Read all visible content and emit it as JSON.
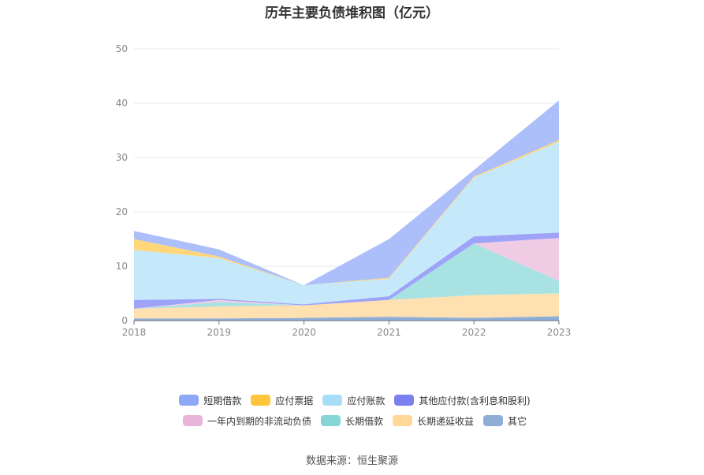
{
  "chart_data": {
    "type": "area",
    "stacked": true,
    "title": "历年主要负债堆积图（亿元）",
    "source": "数据来源：恒生聚源",
    "x": [
      "2018",
      "2019",
      "2020",
      "2021",
      "2022",
      "2023"
    ],
    "ylim": [
      0,
      50
    ],
    "yticks": [
      "0",
      "10",
      "20",
      "30",
      "40",
      "50"
    ],
    "grid": true,
    "legend_position": "bottom",
    "series": [
      {
        "name": "其它",
        "color": "#8eaed8",
        "values": [
          0.4,
          0.4,
          0.5,
          0.7,
          0.5,
          0.8
        ]
      },
      {
        "name": "长期递延收益",
        "color": "#ffe0b0",
        "values": [
          1.8,
          2.2,
          2.3,
          3.1,
          4.2,
          4.2
        ]
      },
      {
        "name": "长期借款",
        "color": "#a8e2e2",
        "values": [
          0,
          0.8,
          0,
          0,
          9.5,
          2.3
        ]
      },
      {
        "name": "一年内到期的非流动负债",
        "color": "#f0cce4",
        "values": [
          0,
          0.4,
          0,
          0,
          0,
          7.9
        ]
      },
      {
        "name": "其他应付款(含利息和股利)",
        "color": "#9ea3f8",
        "values": [
          1.6,
          0.2,
          0.2,
          0.7,
          1.3,
          1.0
        ]
      },
      {
        "name": "应付账款",
        "color": "#c5e9fb",
        "values": [
          9.2,
          7.5,
          3.5,
          3.2,
          10.8,
          16.7
        ]
      },
      {
        "name": "应付票据",
        "color": "#ffd77a",
        "values": [
          2.0,
          0.3,
          0,
          0.2,
          0.2,
          0.3
        ]
      },
      {
        "name": "短期借款",
        "color": "#adbffb",
        "values": [
          1.5,
          1.3,
          0,
          7.1,
          1.2,
          7.3
        ]
      }
    ],
    "legend": [
      [
        {
          "name": "短期借款",
          "color": "#8ea8f8"
        },
        {
          "name": "应付票据",
          "color": "#ffc53d"
        },
        {
          "name": "应付账款",
          "color": "#a8ddf8"
        },
        {
          "name": "其他应付款(含利息和股利)",
          "color": "#7b7ff0"
        }
      ],
      [
        {
          "name": "一年内到期的非流动负债",
          "color": "#e8b4d8"
        },
        {
          "name": "长期借款",
          "color": "#86d6d6"
        },
        {
          "name": "长期递延收益",
          "color": "#ffd898"
        },
        {
          "name": "其它",
          "color": "#8eaed8"
        }
      ]
    ]
  }
}
